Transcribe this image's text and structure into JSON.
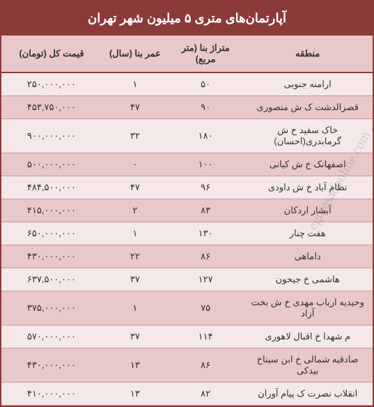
{
  "title": "آپارتمان‌های متری ۵ میلیون شهر تهران",
  "watermark": "اقتصاد آنلاین eghtesadonline.com",
  "headers": {
    "region": "منطقه",
    "area": "متراژ بنا (متر مربع)",
    "age": "عمر بنا (سال)",
    "price": "قیمت کل (تومان)"
  },
  "rows": [
    {
      "region": "ارامنه جنوبی",
      "area": "۵۰",
      "age": "۱",
      "price": "۲۵۰,۰۰۰,۰۰۰"
    },
    {
      "region": "قصرالدشت ک ش منصوری",
      "area": "۹۰",
      "age": "۴۷",
      "price": "۴۵۳,۷۵۰,۰۰۰"
    },
    {
      "region": "خاک سفید خ ش گرمابدری(احسان)",
      "area": "۱۸۰",
      "age": "۳۲",
      "price": "۹۰۰,۰۰۰,۰۰۰"
    },
    {
      "region": "اصفهانک خ ش کیانی",
      "area": "۱۰۰",
      "age": "۰",
      "price": "۵۰۰,۰۰۰,۰۰۰"
    },
    {
      "region": "نظام آباد خ ش داودی",
      "area": "۹۶",
      "age": "۴۷",
      "price": "۴۸۴,۵۰۰,۰۰۰"
    },
    {
      "region": "آبشار اردکان",
      "area": "۸۳",
      "age": "۲",
      "price": "۴۱۵,۰۰۰,۰۰۰"
    },
    {
      "region": "هفت چنار",
      "area": "۱۳۰",
      "age": "۱",
      "price": "۶۵۰,۰۰۰,۰۰۰"
    },
    {
      "region": "داماهی",
      "area": "۸۶",
      "age": "۲۲",
      "price": "۴۳۰,۰۰۰,۰۰۰"
    },
    {
      "region": "هاشمی خ جیحون",
      "area": "۱۲۷",
      "age": "۳۷",
      "price": "۶۳۷,۵۰۰,۰۰۰"
    },
    {
      "region": "وحیدیه ارباب مهدی خ ش بخت آزاد",
      "area": "۷۵",
      "age": "۱",
      "price": "۳۷۵,۰۰۰,۰۰۰"
    },
    {
      "region": "م شهدا خ اقبال لاهوری",
      "area": "۱۱۴",
      "age": "۳۷",
      "price": "۵۷۰,۰۰۰,۰۰۰"
    },
    {
      "region": "صادقیه شمالی خ ابن سیناخ  بیدکی",
      "area": "۸۶",
      "age": "۱۳",
      "price": "۴۳۰,۰۰۰,۰۰۰"
    },
    {
      "region": "انقلاب نصرت ک پیام آوران",
      "area": "۸۲",
      "age": "۱۳",
      "price": "۴۱۰,۰۰۰,۰۰۰"
    }
  ],
  "styles": {
    "header_bg": "#8b3a3a",
    "header_text": "#ffffff",
    "th_bg": "#e8c8c8",
    "row_even_bg": "#f5e8e8",
    "row_odd_bg": "#e8c8c8",
    "border_color": "#8b3a3a",
    "cell_border": "#c49a9a",
    "title_fontsize": 18,
    "cell_fontsize": 13
  }
}
